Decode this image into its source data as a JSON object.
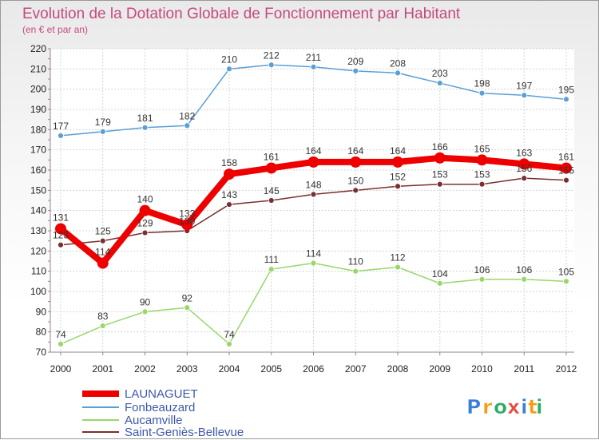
{
  "chart_data": {
    "type": "line",
    "title": "Evolution de la Dotation Globale de Fonctionnement par Habitant",
    "subtitle": "(en € et par an)",
    "x": [
      "2000",
      "2001",
      "2002",
      "2003",
      "2004",
      "2005",
      "2006",
      "2007",
      "2008",
      "2009",
      "2010",
      "2011",
      "2012"
    ],
    "ylim": [
      70,
      220
    ],
    "yticks": [
      "70",
      "80",
      "90",
      "100",
      "110",
      "120",
      "130",
      "140",
      "150",
      "160",
      "170",
      "180",
      "190",
      "200",
      "210",
      "220"
    ],
    "grid": true,
    "legend_position": "bottom-left",
    "series": [
      {
        "name": "LAUNAGUET",
        "color": "#ee0000",
        "values": [
          131,
          114,
          140,
          133,
          158,
          161,
          164,
          164,
          164,
          166,
          165,
          163,
          161
        ]
      },
      {
        "name": "Fonbeauzard",
        "color": "#5b9fd6",
        "values": [
          177,
          179,
          181,
          182,
          210,
          212,
          211,
          209,
          208,
          203,
          198,
          197,
          195
        ]
      },
      {
        "name": "Aucamville",
        "color": "#9ad66b",
        "values": [
          74,
          83,
          90,
          92,
          74,
          111,
          114,
          110,
          112,
          104,
          106,
          106,
          105
        ]
      },
      {
        "name": "Saint-Geniès-Bellevue",
        "color": "#7a2f2f",
        "values": [
          123,
          125,
          129,
          130,
          143,
          145,
          148,
          150,
          152,
          153,
          153,
          156,
          155
        ]
      }
    ]
  },
  "brand": {
    "letters": [
      "P",
      "r",
      "o",
      "x",
      "i",
      "t",
      "i"
    ],
    "colors": [
      "#3b7fd4",
      "#f39c12",
      "#27ae60",
      "#e74c3c",
      "#3b7fd4",
      "#f39c12",
      "#27ae60"
    ]
  }
}
